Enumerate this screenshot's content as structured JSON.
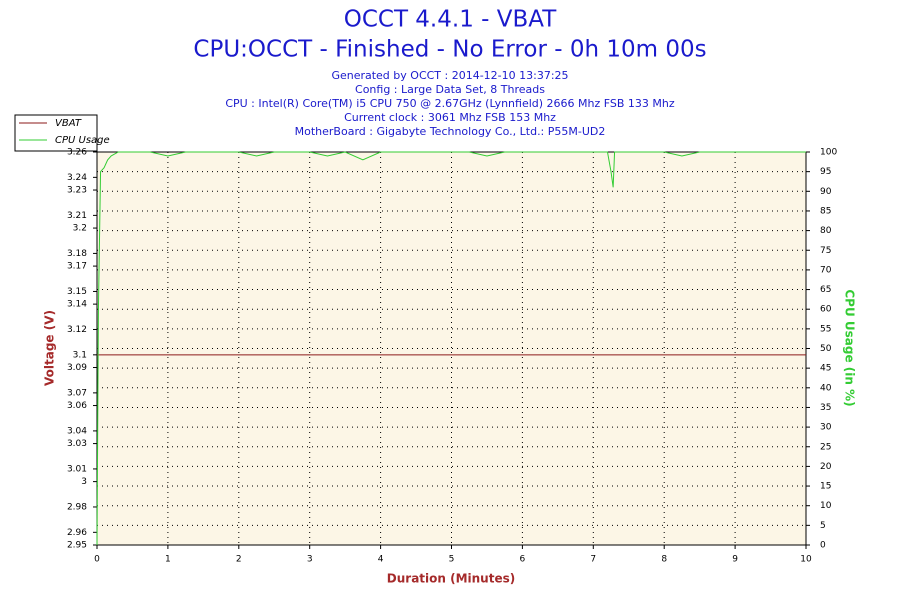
{
  "chart_data": {
    "type": "line",
    "title": "OCCT 4.4.1 - VBAT",
    "subtitle": "CPU:OCCT - Finished - No Error - 0h 10m 00s",
    "info_lines": [
      "Generated by OCCT : 2014-12-10 13:37:25",
      "Config : Large Data Set, 8 Threads",
      "CPU : Intel(R) Core(TM) i5 CPU 750 @ 2.67GHz (Lynnfield) 2666 Mhz FSB 133 Mhz",
      "Current clock : 3061 Mhz FSB 153 Mhz",
      "MotherBoard : Gigabyte Technology Co., Ltd.: P55M-UD2"
    ],
    "x_label": "Duration (Minutes)",
    "y_label": "Voltage (V)",
    "y2_label": "CPU Usage (in %)",
    "xlim": [
      0,
      10
    ],
    "xticks": [
      0,
      1,
      2,
      3,
      4,
      5,
      6,
      7,
      8,
      9,
      10
    ],
    "ylim": [
      2.95,
      3.26
    ],
    "yticks": [
      2.95,
      2.96,
      2.98,
      3.0,
      3.01,
      3.03,
      3.04,
      3.06,
      3.07,
      3.09,
      3.1,
      3.12,
      3.14,
      3.15,
      3.17,
      3.18,
      3.2,
      3.21,
      3.23,
      3.24,
      3.26
    ],
    "y2lim": [
      0,
      100
    ],
    "y2ticks": [
      0,
      5,
      10,
      15,
      20,
      25,
      30,
      35,
      40,
      45,
      50,
      55,
      60,
      65,
      70,
      75,
      80,
      85,
      90,
      95,
      100
    ],
    "grid": true,
    "legend": "top-left",
    "x": [
      0,
      0.02,
      0.05,
      0.1,
      0.15,
      0.2,
      0.3,
      0.5,
      0.75,
      1,
      1.25,
      1.5,
      1.75,
      2,
      2.25,
      2.5,
      2.75,
      3,
      3.25,
      3.5,
      3.75,
      4,
      4.25,
      4.5,
      4.75,
      5,
      5.25,
      5.5,
      5.75,
      6,
      6.25,
      6.5,
      6.75,
      7,
      7.2,
      7.25,
      7.28,
      7.3,
      7.5,
      7.75,
      8,
      8.25,
      8.5,
      8.75,
      9,
      9.25,
      9.5,
      9.75,
      10
    ],
    "series": [
      {
        "name": "VBAT",
        "color": "#8b1a1a",
        "values": [
          3.1,
          3.1,
          3.1,
          3.1,
          3.1,
          3.1,
          3.1,
          3.1,
          3.1,
          3.1,
          3.1,
          3.1,
          3.1,
          3.1,
          3.1,
          3.1,
          3.1,
          3.1,
          3.1,
          3.1,
          3.1,
          3.1,
          3.1,
          3.1,
          3.1,
          3.1,
          3.1,
          3.1,
          3.1,
          3.1,
          3.1,
          3.1,
          3.1,
          3.1,
          3.1,
          3.1,
          3.1,
          3.1,
          3.1,
          3.1,
          3.1,
          3.1,
          3.1,
          3.1,
          3.1,
          3.1,
          3.1,
          3.1,
          3.1
        ]
      },
      {
        "name": "CPU Usage",
        "color": "#33cc33",
        "axis": "y2",
        "values": [
          0,
          60,
          95,
          96,
          98,
          99,
          100,
          100,
          100,
          99,
          100,
          100,
          100,
          100,
          99,
          100,
          100,
          100,
          99,
          100,
          98,
          100,
          100,
          100,
          100,
          100,
          100,
          99,
          100,
          100,
          100,
          100,
          100,
          100,
          100,
          95,
          91,
          100,
          100,
          100,
          100,
          99,
          100,
          100,
          100,
          100,
          100,
          100,
          100
        ]
      }
    ]
  }
}
